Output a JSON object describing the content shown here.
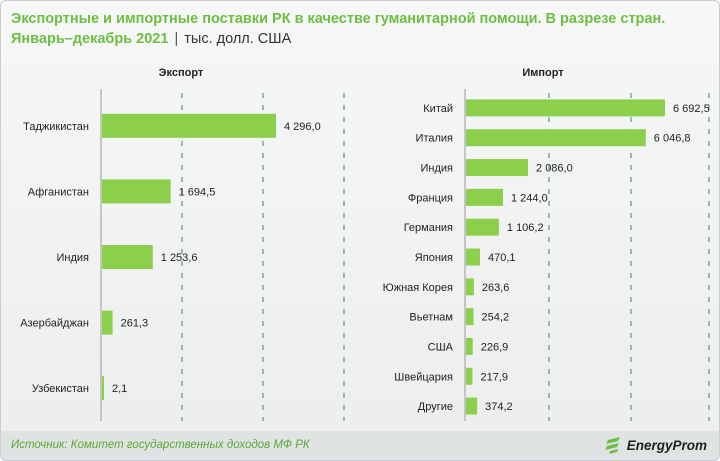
{
  "header": {
    "title_line1": "Экспортные и импортные поставки РК в качестве гуманитарной помощи. В разрезе стран.",
    "title_line2": "Январь–декабрь 2021",
    "separator": "|",
    "unit": "тыс. долл. США"
  },
  "footer": {
    "source": "Источник: Комитет государственных доходов МФ РК",
    "brand": "EnergyProm"
  },
  "colors": {
    "bar": "#8ccf4d",
    "title": "#6fbe44",
    "axis": "#999999",
    "grid": "#7fa8ad"
  },
  "chart_data": [
    {
      "type": "bar",
      "orientation": "horizontal",
      "title": "Экспорт",
      "categories": [
        "Таджикистан",
        "Афганистан",
        "Индия",
        "Азербайджан",
        "Узбекистан"
      ],
      "values": [
        4296.0,
        1694.5,
        1253.6,
        261.3,
        2.1
      ],
      "labels": [
        "4 296,0",
        "1 694,5",
        "1 253,6",
        "261,3",
        "2,1"
      ],
      "grid": true
    },
    {
      "type": "bar",
      "orientation": "horizontal",
      "title": "Импорт",
      "categories": [
        "Китай",
        "Италия",
        "Индия",
        "Франция",
        "Германия",
        "Япония",
        "Южная Корея",
        "Вьетнам",
        "США",
        "Швейцария",
        "Другие"
      ],
      "values": [
        6692.5,
        6046.8,
        2086.0,
        1244.0,
        1106.2,
        470.1,
        263.6,
        254.2,
        226.9,
        217.9,
        374.2
      ],
      "labels": [
        "6 692,5",
        "6 046,8",
        "2 086,0",
        "1 244,0",
        "1 106,2",
        "470,1",
        "263,6",
        "254,2",
        "226,9",
        "217,9",
        "374,2"
      ],
      "grid": true
    }
  ]
}
